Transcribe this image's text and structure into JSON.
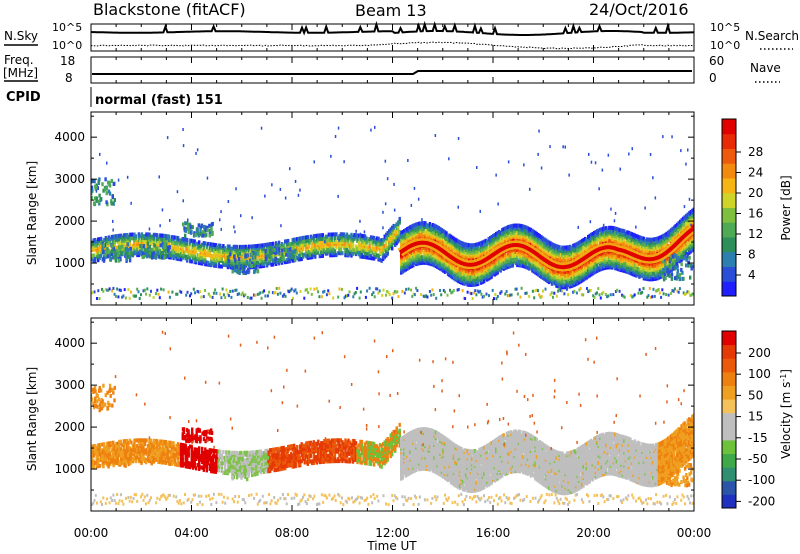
{
  "header": {
    "station": "Blackstone (fitACF)",
    "beam": "Beam 13",
    "date": "24/Oct/2016"
  },
  "noise_panel": {
    "left_label": "N.Sky",
    "right_label": "N.Search",
    "left_ticks": [
      "10^5",
      "10^0"
    ],
    "right_ticks": [
      "10^5",
      "10^0"
    ]
  },
  "freq_panel": {
    "left_label_1": "Freq.",
    "left_label_2": "[MHz]",
    "right_label": "Nave",
    "left_ticks": [
      "18",
      "8"
    ],
    "right_ticks": [
      "60",
      "0"
    ]
  },
  "cpid_panel": {
    "label": "CPID",
    "text": "normal (fast) 151"
  },
  "chart_data": [
    {
      "type": "heatmap",
      "name": "power",
      "ylabel": "Slant Range [km]",
      "ylim": [
        0,
        4600
      ],
      "yticks": [
        1000,
        2000,
        3000,
        4000
      ],
      "xlim": [
        0,
        24
      ],
      "colorbar": {
        "label": "Power [dB]",
        "ticks": [
          "4",
          "8",
          "12",
          "16",
          "20",
          "24",
          "28"
        ],
        "colors": [
          "#1f1fff",
          "#2a4ed8",
          "#2d7fb0",
          "#2f8f5a",
          "#4faa55",
          "#7fbf3f",
          "#cfd428",
          "#f4b515",
          "#f38a10",
          "#ee5a0b",
          "#e82a06",
          "#e00000"
        ]
      }
    },
    {
      "type": "heatmap",
      "name": "velocity",
      "ylabel": "Slant Range [km]",
      "ylim": [
        0,
        4600
      ],
      "yticks": [
        1000,
        2000,
        3000,
        4000
      ],
      "xlim": [
        0,
        24
      ],
      "colorbar": {
        "label": "Velocity [m s^-1]",
        "ticks": [
          "200",
          "100",
          "50",
          "15",
          "-15",
          "-50",
          "-100",
          "-200"
        ],
        "colors": [
          "#2030c0",
          "#2a55a8",
          "#2f8f70",
          "#3fa94a",
          "#6cc23a",
          "#bfbfbf",
          "#bfbfbf",
          "#f4c15a",
          "#f0a020",
          "#ee8010",
          "#ea5a0a",
          "#e63a06",
          "#e00000"
        ]
      }
    }
  ],
  "xaxis": {
    "label": "Time UT",
    "ticks": [
      "00:00",
      "04:00",
      "08:00",
      "12:00",
      "16:00",
      "20:00",
      "00:00"
    ]
  }
}
